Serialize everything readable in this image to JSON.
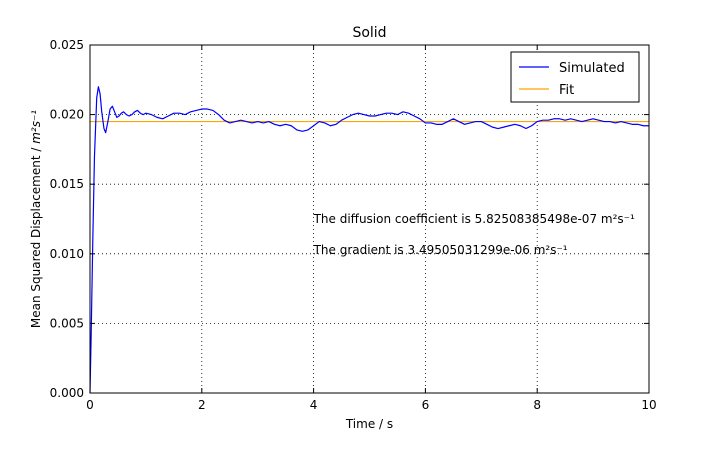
{
  "chart_data": {
    "type": "line",
    "title": "Solid",
    "xlabel": "Time / s",
    "ylabel_prefix": "Mean Squared Displacement / ",
    "ylabel_unit": "m²s⁻¹",
    "xlim": [
      0,
      10
    ],
    "ylim": [
      0,
      0.025
    ],
    "x_ticks": [
      0,
      2,
      4,
      6,
      8,
      10
    ],
    "x_tick_labels": [
      "0",
      "2",
      "4",
      "6",
      "8",
      "10"
    ],
    "y_ticks": [
      0,
      0.005,
      0.01,
      0.015,
      0.02,
      0.025
    ],
    "y_tick_labels": [
      "0.000",
      "0.005",
      "0.010",
      "0.015",
      "0.020",
      "0.025"
    ],
    "grid": true,
    "legend_position": "top-right",
    "series": [
      {
        "name": "Simulated",
        "color": "#0000ff",
        "x": [
          0,
          0.02,
          0.05,
          0.08,
          0.12,
          0.15,
          0.18,
          0.21,
          0.25,
          0.28,
          0.32,
          0.36,
          0.4,
          0.44,
          0.48,
          0.52,
          0.56,
          0.6,
          0.65,
          0.7,
          0.75,
          0.8,
          0.85,
          0.9,
          0.95,
          1.0,
          1.1,
          1.2,
          1.3,
          1.4,
          1.5,
          1.6,
          1.7,
          1.8,
          1.9,
          2.0,
          2.1,
          2.2,
          2.3,
          2.4,
          2.5,
          2.6,
          2.7,
          2.8,
          2.9,
          3.0,
          3.1,
          3.2,
          3.3,
          3.4,
          3.5,
          3.6,
          3.7,
          3.8,
          3.9,
          4.0,
          4.1,
          4.2,
          4.3,
          4.4,
          4.5,
          4.6,
          4.7,
          4.8,
          4.9,
          5.0,
          5.1,
          5.2,
          5.3,
          5.4,
          5.5,
          5.6,
          5.7,
          5.8,
          5.9,
          6.0,
          6.1,
          6.2,
          6.3,
          6.4,
          6.5,
          6.6,
          6.7,
          6.8,
          6.9,
          7.0,
          7.1,
          7.2,
          7.3,
          7.4,
          7.5,
          7.6,
          7.7,
          7.8,
          7.9,
          8.0,
          8.1,
          8.2,
          8.3,
          8.4,
          8.5,
          8.6,
          8.7,
          8.8,
          8.9,
          9.0,
          9.1,
          9.2,
          9.3,
          9.4,
          9.5,
          9.6,
          9.7,
          9.8,
          9.9,
          10.0
        ],
        "y": [
          0.0,
          0.004,
          0.011,
          0.017,
          0.0212,
          0.022,
          0.0215,
          0.0202,
          0.019,
          0.0187,
          0.0195,
          0.0204,
          0.0206,
          0.0202,
          0.0198,
          0.0199,
          0.0201,
          0.0202,
          0.02,
          0.0199,
          0.02,
          0.0202,
          0.0203,
          0.0201,
          0.02,
          0.0201,
          0.02,
          0.0198,
          0.0197,
          0.0199,
          0.0201,
          0.0201,
          0.02,
          0.0202,
          0.0203,
          0.0204,
          0.0204,
          0.0203,
          0.02,
          0.0196,
          0.0194,
          0.0195,
          0.0196,
          0.0195,
          0.0194,
          0.0195,
          0.0194,
          0.0195,
          0.0193,
          0.0192,
          0.0193,
          0.0192,
          0.0189,
          0.0188,
          0.0189,
          0.0192,
          0.0195,
          0.0194,
          0.0192,
          0.0193,
          0.0196,
          0.0198,
          0.02,
          0.0201,
          0.02,
          0.0199,
          0.0199,
          0.02,
          0.0201,
          0.0201,
          0.02,
          0.0202,
          0.0201,
          0.0199,
          0.0197,
          0.0194,
          0.0194,
          0.0193,
          0.0193,
          0.0195,
          0.0197,
          0.0195,
          0.0193,
          0.0194,
          0.0195,
          0.0195,
          0.0193,
          0.0191,
          0.019,
          0.0191,
          0.0192,
          0.0193,
          0.0192,
          0.019,
          0.0192,
          0.0195,
          0.0196,
          0.0196,
          0.0197,
          0.0197,
          0.0196,
          0.0197,
          0.0196,
          0.0195,
          0.0196,
          0.0197,
          0.0196,
          0.0195,
          0.0195,
          0.0194,
          0.0195,
          0.0194,
          0.0193,
          0.0193,
          0.0192,
          0.0192
        ]
      },
      {
        "name": "Fit",
        "color": "#ffa500",
        "x": [
          0,
          10
        ],
        "y": [
          0.0195,
          0.0195
        ]
      }
    ],
    "annotations": [
      {
        "text_prefix": "The diffusion coefficient is 5.82508385498e-07 ",
        "unit": "m²s⁻¹",
        "x": 4.0,
        "y": 0.0122
      },
      {
        "text_prefix": "The gradient is 3.49505031299e-06 ",
        "unit": "m²s⁻¹",
        "x": 4.0,
        "y": 0.01
      }
    ]
  }
}
